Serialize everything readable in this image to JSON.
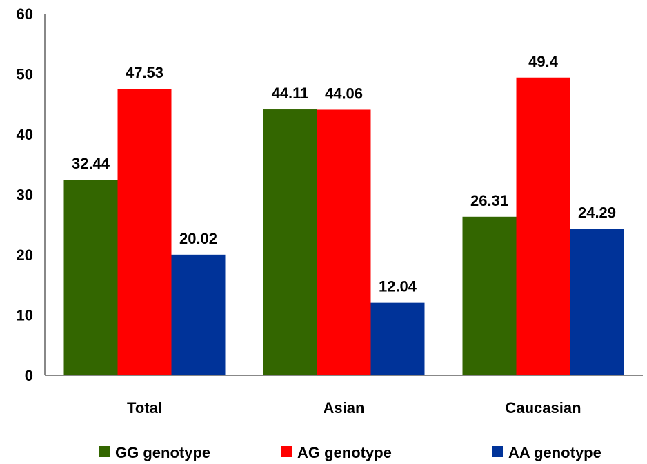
{
  "chart_data": {
    "type": "bar",
    "title": "",
    "xlabel": "",
    "ylabel": "",
    "categories": [
      "Total",
      "Asian",
      "Caucasian"
    ],
    "series": [
      {
        "name": "GG genotype",
        "color": "#336600",
        "values": [
          32.44,
          44.11,
          26.31
        ],
        "labels": [
          "32.44",
          "44.11",
          "26.31"
        ]
      },
      {
        "name": "AG genotype",
        "color": "#FF0000",
        "values": [
          47.53,
          44.06,
          49.4
        ],
        "labels": [
          "47.53",
          "44.06",
          "49.4"
        ]
      },
      {
        "name": "AA genotype",
        "color": "#003399",
        "values": [
          20.02,
          12.04,
          24.29
        ],
        "labels": [
          "20.02",
          "12.04",
          "24.29"
        ]
      }
    ],
    "ylim": [
      0,
      60
    ],
    "yticks": [
      "0",
      "10",
      "20",
      "30",
      "40",
      "50",
      "60"
    ],
    "grid": false,
    "legend": "bottom"
  }
}
